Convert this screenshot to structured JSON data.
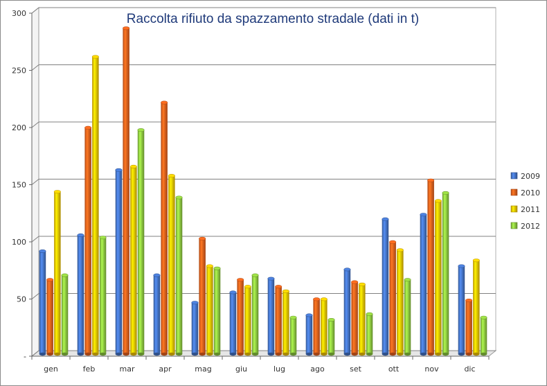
{
  "chart_data": {
    "type": "bar",
    "title": "Raccolta rifiuto da spazzamento stradale  (dati in t)",
    "xlabel": "",
    "ylabel": "",
    "categories": [
      "gen",
      "feb",
      "mar",
      "apr",
      "mag",
      "giu",
      "lug",
      "ago",
      "set",
      "ott",
      "nov",
      "dic"
    ],
    "series": [
      {
        "name": "2009",
        "color": "#4472c4",
        "values": [
          90,
          104,
          161,
          69,
          45,
          54,
          66,
          34,
          74,
          118,
          122,
          77
        ]
      },
      {
        "name": "2010",
        "color": "#e8601c",
        "values": [
          65,
          198,
          285,
          220,
          101,
          65,
          59,
          48,
          63,
          98,
          152,
          47
        ]
      },
      {
        "name": "2011",
        "color": "#f2c200",
        "values": [
          142,
          260,
          164,
          156,
          77,
          59,
          55,
          48,
          61,
          91,
          134,
          82
        ]
      },
      {
        "name": "2012",
        "color": "#8cc63f",
        "values": [
          69,
          102,
          196,
          137,
          75,
          69,
          32,
          30,
          35,
          65,
          141,
          32
        ]
      }
    ],
    "ylim": [
      0,
      300
    ],
    "yticks": [
      0,
      50,
      100,
      150,
      200,
      250,
      300
    ],
    "ytick_labels": [
      "-",
      "50",
      "100",
      "150",
      "200",
      "250",
      "300"
    ],
    "grid": true,
    "legend_position": "right"
  }
}
